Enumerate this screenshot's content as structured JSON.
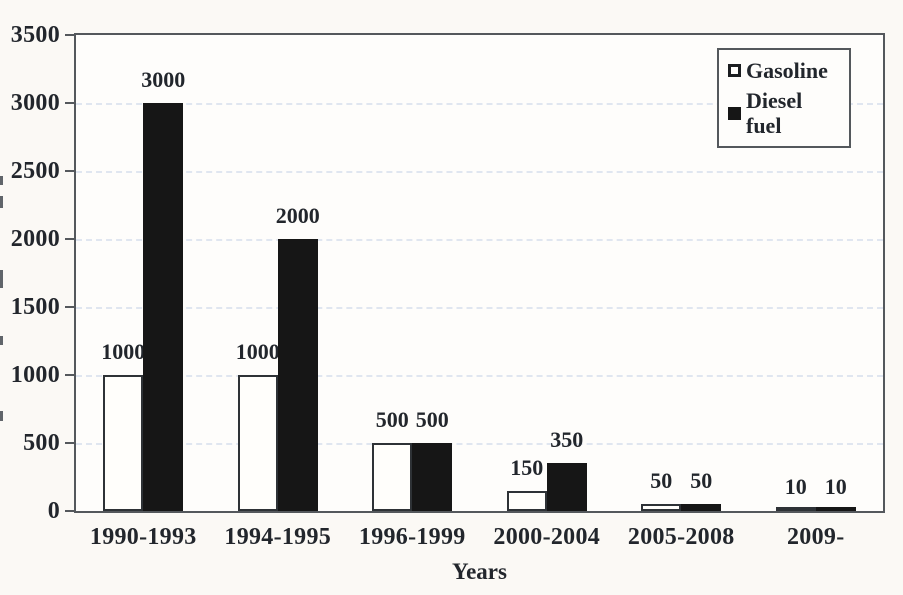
{
  "figure": {
    "background": "#fbf9f5",
    "plot_background": "#fefdfb",
    "axis_color": "#54585c",
    "text_color": "#22262c",
    "gridline_color": "#e0e6f0",
    "y_axis_title_clipped": true
  },
  "chart_data": {
    "type": "bar",
    "title": "",
    "xlabel": "Years",
    "ylabel": "",
    "ylim": [
      0,
      3500
    ],
    "ytick_step": 500,
    "grid": "horizontal-dashed",
    "legend_position": "top-right-inside",
    "bar_value_labels": true,
    "categories": [
      "1990-1993",
      "1994-1995",
      "1996-1999",
      "2000-2004",
      "2005-2008",
      "2009-"
    ],
    "series": [
      {
        "name": "Gasoline",
        "fill": "#fffefb",
        "border": "#2e3236",
        "values": [
          1000,
          1000,
          500,
          150,
          50,
          10
        ]
      },
      {
        "name": "Diesel fuel",
        "fill": "#161616",
        "border": "#161616",
        "values": [
          3000,
          2000,
          500,
          350,
          50,
          10
        ]
      }
    ]
  },
  "legend": {
    "items": [
      {
        "label": "Gasoline",
        "swatch": "white-square"
      },
      {
        "label": "Diesel fuel",
        "swatch": "black-square"
      }
    ]
  }
}
